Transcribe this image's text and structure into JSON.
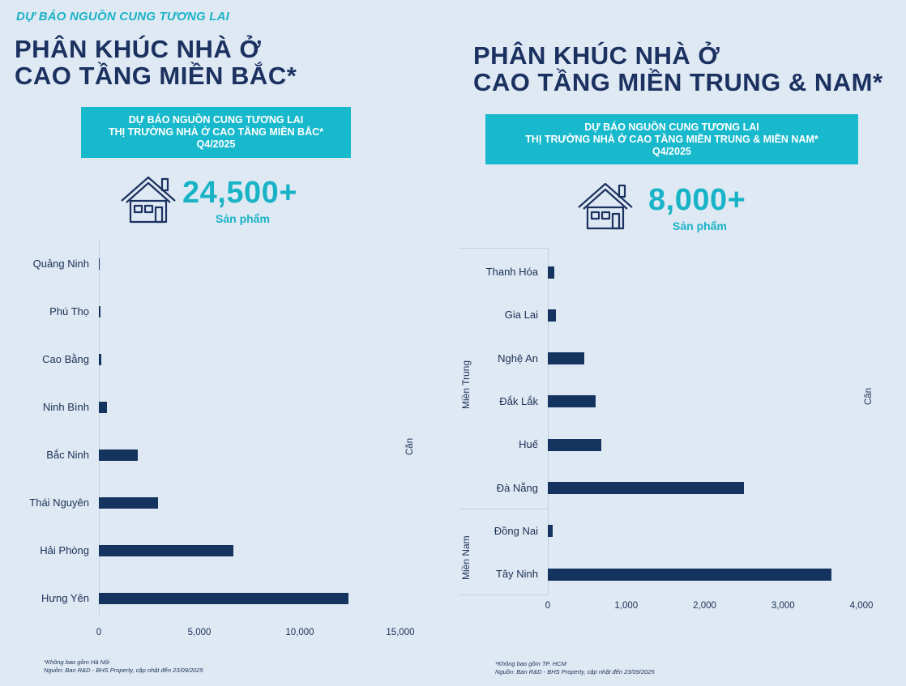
{
  "kicker": "DỰ BÁO NGUỒN CUNG TƯƠNG LAI",
  "left_panel": {
    "title_line1": "PHÂN KHÚC NHÀ Ở",
    "title_line2": "CAO TẦNG MIỀN BẮC*",
    "banner_line1": "DỰ BÁO NGUỒN CUNG TƯƠNG LAI",
    "banner_line2": "THỊ TRƯỜNG NHÀ Ở CAO TẦNG MIỀN BẮC*",
    "banner_line3": "Q4/2025",
    "total": "24,500+",
    "total_unit": "Sản phẩm",
    "footnote1": "*Không bao gồm Hà Nội",
    "footnote2": "Nguồn: Ban R&D - BHS Property, cập nhật đến 23/09/2025"
  },
  "right_panel": {
    "title_line1": "PHÂN KHÚC NHÀ Ở",
    "title_line2": "CAO TẦNG MIỀN TRUNG & NAM*",
    "banner_line1": "DỰ BÁO NGUỒN CUNG TƯƠNG LAI",
    "banner_line2": "THỊ TRƯỜNG NHÀ Ở CAO TẦNG MIỀN TRUNG & MIỀN NAM*",
    "banner_line3": "Q4/2025",
    "total": "8,000+",
    "total_unit": "Sản phẩm",
    "footnote1": "*Không bao gồm TP. HCM",
    "footnote2": "Nguồn: Ban R&D - BHS Property, cập nhật đến 23/09/2025"
  },
  "colors": {
    "bar": "#15335f",
    "accent": "#19b9cd",
    "title": "#1b3160",
    "background": "#dfe9f4"
  },
  "icons": {
    "house": "house-icon"
  },
  "chart_data": [
    {
      "type": "bar",
      "orientation": "horizontal",
      "categories": [
        "Quảng Ninh",
        "Phú Thọ",
        "Cao Bằng",
        "Ninh Bình",
        "Bắc Ninh",
        "Thái Nguyên",
        "Hải Phòng",
        "Hưng Yên"
      ],
      "values": [
        20,
        100,
        120,
        400,
        1950,
        2950,
        6700,
        12400
      ],
      "xlabel": "",
      "ylabel": "Căn",
      "xlim": [
        0,
        15000
      ],
      "xticks": [
        "0",
        "5,000",
        "10,000",
        "15,000"
      ],
      "grid": false
    },
    {
      "type": "bar",
      "orientation": "horizontal",
      "categories": [
        "Thanh Hóa",
        "Gia Lai",
        "Nghệ An",
        "Đắk Lắk",
        "Huế",
        "Đà Nẵng",
        "Đồng Nai",
        "Tây Ninh"
      ],
      "groups": [
        {
          "name": "Miền Trung",
          "categories": [
            "Thanh Hóa",
            "Gia Lai",
            "Nghệ An",
            "Đắk Lắk",
            "Huế",
            "Đà Nẵng"
          ]
        },
        {
          "name": "Miền Nam",
          "categories": [
            "Đồng Nai",
            "Tây Ninh"
          ]
        }
      ],
      "values": [
        80,
        100,
        460,
        610,
        680,
        2500,
        60,
        3620
      ],
      "xlabel": "",
      "ylabel": "Căn",
      "xlim": [
        0,
        4000
      ],
      "xticks": [
        "0",
        "1,000",
        "2,000",
        "3,000",
        "4,000"
      ],
      "grid": false
    }
  ]
}
